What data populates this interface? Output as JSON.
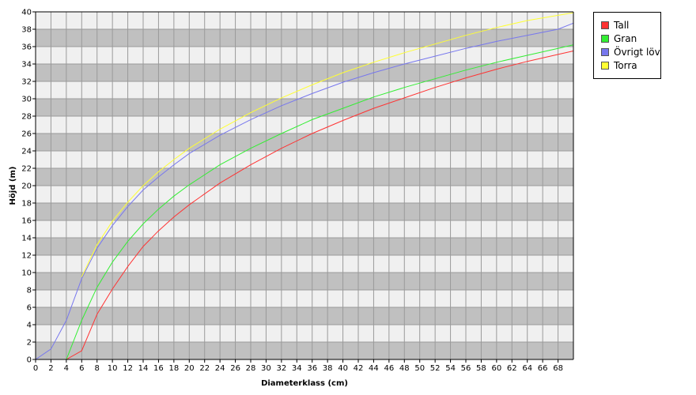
{
  "chart_data": {
    "type": "line",
    "title": "",
    "xlabel": "Diameterklass (cm)",
    "ylabel": "Höjd (m)",
    "xlim": [
      0,
      70
    ],
    "ylim": [
      0,
      40
    ],
    "x_ticks": [
      0,
      2,
      4,
      6,
      8,
      10,
      12,
      14,
      16,
      18,
      20,
      22,
      24,
      26,
      28,
      30,
      32,
      34,
      36,
      38,
      40,
      42,
      44,
      46,
      48,
      50,
      52,
      54,
      56,
      58,
      60,
      62,
      64,
      66,
      68
    ],
    "y_ticks": [
      0,
      2,
      4,
      6,
      8,
      10,
      12,
      14,
      16,
      18,
      20,
      22,
      24,
      26,
      28,
      30,
      32,
      34,
      36,
      38,
      40
    ],
    "grid": true,
    "legend_position": "top-right",
    "band_colors": [
      "#c0c0c0",
      "#f0f0f0"
    ],
    "series": [
      {
        "name": "Tall",
        "color": "#ff3333",
        "x": [
          4,
          6,
          8,
          10,
          12,
          14,
          16,
          18,
          20,
          24,
          28,
          32,
          36,
          40,
          44,
          48,
          52,
          56,
          60,
          64,
          68,
          70
        ],
        "y": [
          0,
          1,
          5.2,
          8.1,
          10.7,
          13.0,
          14.8,
          16.4,
          17.8,
          20.3,
          22.4,
          24.3,
          26.0,
          27.5,
          28.9,
          30.1,
          31.3,
          32.4,
          33.4,
          34.3,
          35.1,
          35.5
        ]
      },
      {
        "name": "Gran",
        "color": "#33ee33",
        "x": [
          4,
          6,
          8,
          10,
          12,
          14,
          16,
          18,
          20,
          24,
          28,
          32,
          36,
          40,
          44,
          48,
          52,
          56,
          60,
          64,
          68,
          70
        ],
        "y": [
          0,
          4.5,
          8.3,
          11.2,
          13.6,
          15.6,
          17.3,
          18.8,
          20.1,
          22.4,
          24.3,
          26.0,
          27.6,
          28.9,
          30.2,
          31.3,
          32.3,
          33.3,
          34.2,
          35.0,
          35.8,
          36.2
        ]
      },
      {
        "name": "Övrigt löv",
        "color": "#7777ee",
        "x": [
          0,
          2,
          4,
          6,
          8,
          10,
          12,
          14,
          16,
          18,
          20,
          24,
          28,
          32,
          36,
          40,
          44,
          48,
          52,
          56,
          60,
          64,
          68,
          70
        ],
        "y": [
          0,
          1.2,
          4.5,
          9.3,
          12.8,
          15.4,
          17.6,
          19.5,
          21.0,
          22.4,
          23.7,
          25.8,
          27.6,
          29.2,
          30.6,
          31.9,
          33.0,
          34.0,
          34.9,
          35.8,
          36.6,
          37.3,
          38.0,
          38.7
        ]
      },
      {
        "name": "Torra",
        "color": "#ffff33",
        "x": [
          6,
          8,
          10,
          12,
          14,
          16,
          18,
          20,
          24,
          28,
          32,
          36,
          40,
          44,
          48,
          52,
          56,
          60,
          64,
          68,
          70
        ],
        "y": [
          9.5,
          13.2,
          15.9,
          18.1,
          20.0,
          21.6,
          23.0,
          24.3,
          26.5,
          28.4,
          30.1,
          31.6,
          33.0,
          34.2,
          35.3,
          36.3,
          37.3,
          38.2,
          39.0,
          39.6,
          39.9
        ]
      }
    ]
  }
}
